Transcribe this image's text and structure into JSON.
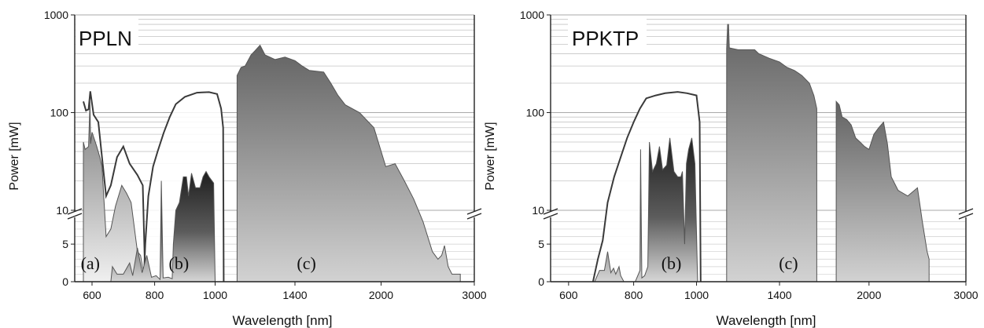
{
  "chart_data": [
    {
      "type": "area",
      "title": "PPLN",
      "xlabel": "Wavelength [nm]",
      "ylabel": "Power [mW]",
      "x_ticks": [
        "600",
        "800",
        "1000",
        "1400",
        "2000",
        "3000"
      ],
      "y_ticks_log": [
        "10",
        "100",
        "1000"
      ],
      "y_ticks_linear": [
        "0",
        "5"
      ],
      "axis_break": true,
      "grid": true,
      "region_labels": [
        "(a)",
        "(b)",
        "(c)"
      ],
      "series": [
        {
          "label": "(a) outline",
          "points": [
            [
              550,
              130
            ],
            [
              565,
              105
            ],
            [
              580,
              108
            ],
            [
              590,
              165
            ],
            [
              605,
              95
            ],
            [
              620,
              80
            ],
            [
              630,
              40
            ],
            [
              645,
              14
            ],
            [
              660,
              18
            ],
            [
              680,
              35
            ],
            [
              700,
              45
            ],
            [
              720,
              30
            ],
            [
              745,
              23
            ],
            [
              762,
              18
            ],
            [
              770,
              0
            ]
          ]
        },
        {
          "label": "(a) filled",
          "points": [
            [
              550,
              50
            ],
            [
              560,
              42
            ],
            [
              580,
              45
            ],
            [
              588,
              130
            ],
            [
              592,
              48
            ],
            [
              600,
              63
            ],
            [
              615,
              45
            ],
            [
              625,
              35
            ],
            [
              632,
              28
            ],
            [
              638,
              13
            ],
            [
              645,
              6
            ],
            [
              660,
              7
            ],
            [
              675,
              11
            ],
            [
              695,
              18
            ],
            [
              710,
              15
            ],
            [
              725,
              12
            ],
            [
              745,
              4
            ],
            [
              755,
              3.5
            ],
            [
              765,
              1
            ],
            [
              770,
              0
            ]
          ]
        },
        {
          "label": "(b) outline",
          "points": [
            [
              765,
              0
            ],
            [
              770,
              5
            ],
            [
              780,
              14
            ],
            [
              795,
              28
            ],
            [
              810,
              40
            ],
            [
              830,
              62
            ],
            [
              850,
              90
            ],
            [
              870,
              122
            ],
            [
              900,
              145
            ],
            [
              940,
              160
            ],
            [
              980,
              162
            ],
            [
              1010,
              155
            ],
            [
              1030,
              110
            ],
            [
              1040,
              70
            ],
            [
              1043,
              0
            ]
          ]
        },
        {
          "label": "(b) filled",
          "points": [
            [
              660,
              0
            ],
            [
              665,
              2
            ],
            [
              680,
              1
            ],
            [
              700,
              1
            ],
            [
              720,
              2.5
            ],
            [
              730,
              0.8
            ],
            [
              745,
              4.5
            ],
            [
              760,
              1.2
            ],
            [
              775,
              3.5
            ],
            [
              790,
              0.6
            ],
            [
              805,
              0.8
            ],
            [
              818,
              0.3
            ],
            [
              822,
              20
            ],
            [
              828,
              0.5
            ],
            [
              845,
              0.6
            ],
            [
              858,
              0.4
            ],
            [
              862,
              5
            ],
            [
              870,
              10
            ],
            [
              882,
              12
            ],
            [
              895,
              22
            ],
            [
              905,
              22
            ],
            [
              912,
              14
            ],
            [
              922,
              24
            ],
            [
              935,
              17
            ],
            [
              950,
              17
            ],
            [
              960,
              22
            ],
            [
              970,
              25
            ],
            [
              980,
              22
            ],
            [
              995,
              19
            ],
            [
              1000,
              0
            ]
          ]
        },
        {
          "label": "(c) filled",
          "points": [
            [
              1110,
              0
            ],
            [
              1110,
              240
            ],
            [
              1130,
              290
            ],
            [
              1150,
              300
            ],
            [
              1180,
              390
            ],
            [
              1200,
              430
            ],
            [
              1225,
              490
            ],
            [
              1250,
              390
            ],
            [
              1300,
              350
            ],
            [
              1350,
              370
            ],
            [
              1400,
              340
            ],
            [
              1450,
              300
            ],
            [
              1500,
              270
            ],
            [
              1600,
              260
            ],
            [
              1650,
              200
            ],
            [
              1700,
              150
            ],
            [
              1750,
              120
            ],
            [
              1850,
              100
            ],
            [
              1950,
              70
            ],
            [
              2050,
              28
            ],
            [
              2150,
              30
            ],
            [
              2250,
              20
            ],
            [
              2350,
              13
            ],
            [
              2450,
              8
            ],
            [
              2550,
              4
            ],
            [
              2610,
              3
            ],
            [
              2650,
              3.5
            ],
            [
              2680,
              4.8
            ],
            [
              2720,
              2
            ],
            [
              2760,
              1
            ],
            [
              2850,
              1
            ],
            [
              2850,
              0
            ]
          ]
        }
      ]
    },
    {
      "type": "area",
      "title": "PPKTP",
      "xlabel": "Wavelength [nm]",
      "ylabel": "Power [mW]",
      "x_ticks": [
        "600",
        "800",
        "1000",
        "1400",
        "2000",
        "3000"
      ],
      "y_ticks_log": [
        "10",
        "100",
        "1000"
      ],
      "y_ticks_linear": [
        "0",
        "5"
      ],
      "axis_break": true,
      "grid": true,
      "region_labels": [
        "(b)",
        "(c)"
      ],
      "series": [
        {
          "label": "(b) outline",
          "points": [
            [
              675,
              0
            ],
            [
              690,
              3
            ],
            [
              705,
              5.5
            ],
            [
              720,
              12
            ],
            [
              740,
              22
            ],
            [
              760,
              35
            ],
            [
              780,
              55
            ],
            [
              800,
              80
            ],
            [
              820,
              110
            ],
            [
              840,
              140
            ],
            [
              870,
              150
            ],
            [
              900,
              158
            ],
            [
              940,
              163
            ],
            [
              970,
              158
            ],
            [
              1000,
              150
            ],
            [
              1015,
              80
            ],
            [
              1020,
              0
            ]
          ]
        },
        {
          "label": "(b) filled",
          "points": [
            [
              680,
              0
            ],
            [
              695,
              1.5
            ],
            [
              710,
              1.5
            ],
            [
              720,
              4
            ],
            [
              730,
              1.2
            ],
            [
              738,
              1.8
            ],
            [
              745,
              1
            ],
            [
              755,
              2
            ],
            [
              760,
              0.8
            ],
            [
              770,
              0
            ],
            [
              805,
              0
            ],
            [
              815,
              1
            ],
            [
              820,
              1.5
            ],
            [
              822,
              42
            ],
            [
              826,
              0.5
            ],
            [
              835,
              0.8
            ],
            [
              845,
              2
            ],
            [
              850,
              50
            ],
            [
              860,
              25
            ],
            [
              872,
              30
            ],
            [
              882,
              45
            ],
            [
              892,
              26
            ],
            [
              905,
              29
            ],
            [
              915,
              55
            ],
            [
              928,
              25
            ],
            [
              940,
              22
            ],
            [
              950,
              22
            ],
            [
              955,
              25
            ],
            [
              962,
              5
            ],
            [
              968,
              30
            ],
            [
              975,
              42
            ],
            [
              985,
              55
            ],
            [
              995,
              30
            ],
            [
              1005,
              0
            ]
          ]
        },
        {
          "label": "(c) filled",
          "points": [
            [
              1145,
              0
            ],
            [
              1145,
              450
            ],
            [
              1150,
              800
            ],
            [
              1154,
              800
            ],
            [
              1158,
              460
            ],
            [
              1200,
              440
            ],
            [
              1240,
              440
            ],
            [
              1280,
              440
            ],
            [
              1300,
              400
            ],
            [
              1350,
              360
            ],
            [
              1400,
              330
            ],
            [
              1450,
              290
            ],
            [
              1500,
              270
            ],
            [
              1550,
              240
            ],
            [
              1600,
              200
            ],
            [
              1630,
              150
            ],
            [
              1650,
              110
            ],
            [
              1650,
              0
            ]
          ]
        },
        {
          "label": "(c2) filled",
          "points": [
            [
              1780,
              0
            ],
            [
              1780,
              130
            ],
            [
              1800,
              120
            ],
            [
              1820,
              90
            ],
            [
              1850,
              85
            ],
            [
              1880,
              75
            ],
            [
              1910,
              55
            ],
            [
              1940,
              50
            ],
            [
              1970,
              45
            ],
            [
              2000,
              42
            ],
            [
              2050,
              60
            ],
            [
              2100,
              70
            ],
            [
              2150,
              80
            ],
            [
              2190,
              48
            ],
            [
              2230,
              22
            ],
            [
              2300,
              16
            ],
            [
              2400,
              14
            ],
            [
              2500,
              17
            ],
            [
              2550,
              8
            ],
            [
              2600,
              4
            ],
            [
              2620,
              3
            ],
            [
              2620,
              0
            ]
          ]
        }
      ]
    }
  ]
}
